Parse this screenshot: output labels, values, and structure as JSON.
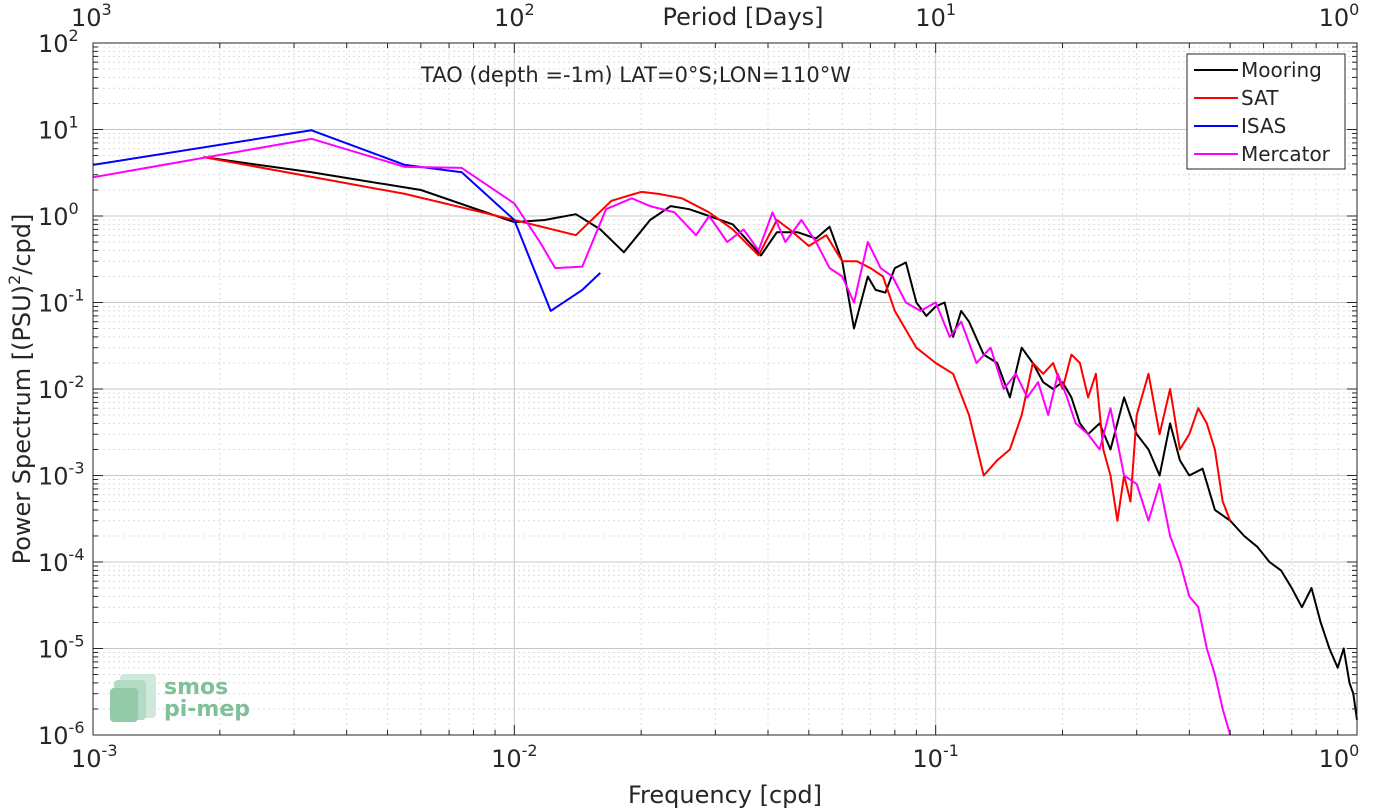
{
  "chart_data": {
    "type": "line",
    "title": "TAO (depth =-1m) LAT=0°S;LON=110°W",
    "xlabel": "Frequency [cpd]",
    "ylabel": "Power Spectrum [(PSU)^2/cpd]",
    "ylabel_main": "Power Spectrum [(PSU)",
    "ylabel_sup": "2",
    "ylabel_tail": "/cpd]",
    "x2label": "Period [Days]",
    "xscale": "log",
    "yscale": "log",
    "xlim": [
      0.001,
      1
    ],
    "ylim": [
      1e-06,
      100
    ],
    "grid": true,
    "legend_position": "top-right",
    "x_ticks": [
      {
        "base": "10",
        "exp": "-3",
        "value": 0.001
      },
      {
        "base": "10",
        "exp": "-2",
        "value": 0.01
      },
      {
        "base": "10",
        "exp": "-1",
        "value": 0.1
      },
      {
        "base": "10",
        "exp": "0",
        "value": 1
      }
    ],
    "x2_ticks": [
      {
        "base": "10",
        "exp": "3",
        "value": 0.001
      },
      {
        "base": "10",
        "exp": "2",
        "value": 0.01
      },
      {
        "base": "10",
        "exp": "1",
        "value": 0.1
      },
      {
        "base": "10",
        "exp": "0",
        "value": 1
      }
    ],
    "y_ticks": [
      {
        "base": "10",
        "exp": "-6",
        "value": 1e-06
      },
      {
        "base": "10",
        "exp": "-5",
        "value": 1e-05
      },
      {
        "base": "10",
        "exp": "-4",
        "value": 0.0001
      },
      {
        "base": "10",
        "exp": "-3",
        "value": 0.001
      },
      {
        "base": "10",
        "exp": "-2",
        "value": 0.01
      },
      {
        "base": "10",
        "exp": "-1",
        "value": 0.1
      },
      {
        "base": "10",
        "exp": "0",
        "value": 1
      },
      {
        "base": "10",
        "exp": "1",
        "value": 10
      },
      {
        "base": "10",
        "exp": "2",
        "value": 100
      }
    ],
    "series": [
      {
        "name": "Mooring",
        "color": "#000000",
        "x": [
          0.00183,
          0.0033,
          0.006,
          0.01,
          0.0118,
          0.014,
          0.016,
          0.0182,
          0.021,
          0.0235,
          0.026,
          0.029,
          0.033,
          0.0385,
          0.042,
          0.047,
          0.052,
          0.056,
          0.06,
          0.064,
          0.069,
          0.072,
          0.076,
          0.08,
          0.085,
          0.09,
          0.095,
          0.1,
          0.105,
          0.11,
          0.115,
          0.12,
          0.13,
          0.14,
          0.15,
          0.16,
          0.17,
          0.18,
          0.19,
          0.2,
          0.21,
          0.22,
          0.23,
          0.245,
          0.26,
          0.28,
          0.3,
          0.32,
          0.34,
          0.36,
          0.38,
          0.4,
          0.43,
          0.46,
          0.5,
          0.54,
          0.58,
          0.62,
          0.66,
          0.7,
          0.74,
          0.78,
          0.82,
          0.86,
          0.9,
          0.93,
          0.96,
          0.98,
          1.0
        ],
        "y": [
          4.8,
          3.2,
          2.0,
          0.85,
          0.9,
          1.05,
          0.7,
          0.38,
          0.9,
          1.3,
          1.2,
          1.0,
          0.8,
          0.35,
          0.65,
          0.65,
          0.55,
          0.75,
          0.3,
          0.05,
          0.2,
          0.14,
          0.13,
          0.25,
          0.29,
          0.1,
          0.07,
          0.09,
          0.1,
          0.04,
          0.08,
          0.06,
          0.025,
          0.02,
          0.008,
          0.03,
          0.02,
          0.012,
          0.01,
          0.012,
          0.008,
          0.004,
          0.003,
          0.004,
          0.002,
          0.008,
          0.003,
          0.002,
          0.001,
          0.004,
          0.0015,
          0.001,
          0.0012,
          0.0004,
          0.0003,
          0.0002,
          0.00015,
          0.0001,
          8e-05,
          5e-05,
          3e-05,
          5e-05,
          2e-05,
          1e-05,
          6e-06,
          1e-05,
          4e-06,
          3e-06,
          1.5e-06
        ]
      },
      {
        "name": "SAT",
        "color": "#ff0000",
        "x": [
          0.00183,
          0.0055,
          0.01,
          0.014,
          0.017,
          0.02,
          0.022,
          0.025,
          0.029,
          0.033,
          0.038,
          0.042,
          0.045,
          0.05,
          0.055,
          0.06,
          0.065,
          0.07,
          0.075,
          0.08,
          0.09,
          0.1,
          0.11,
          0.12,
          0.13,
          0.14,
          0.15,
          0.16,
          0.17,
          0.18,
          0.19,
          0.2,
          0.21,
          0.22,
          0.23,
          0.24,
          0.25,
          0.26,
          0.27,
          0.28,
          0.29,
          0.3,
          0.32,
          0.34,
          0.36,
          0.38,
          0.4,
          0.42,
          0.44,
          0.46,
          0.48,
          0.5
        ],
        "y": [
          4.8,
          1.8,
          0.9,
          0.6,
          1.5,
          1.9,
          1.8,
          1.6,
          1.1,
          0.7,
          0.35,
          0.9,
          0.7,
          0.45,
          0.6,
          0.3,
          0.3,
          0.25,
          0.2,
          0.08,
          0.03,
          0.02,
          0.015,
          0.005,
          0.001,
          0.0015,
          0.002,
          0.005,
          0.02,
          0.015,
          0.02,
          0.01,
          0.025,
          0.02,
          0.008,
          0.015,
          0.002,
          0.001,
          0.0003,
          0.001,
          0.0005,
          0.005,
          0.015,
          0.003,
          0.01,
          0.002,
          0.003,
          0.006,
          0.004,
          0.002,
          0.0005,
          0.0003
        ]
      },
      {
        "name": "ISAS",
        "color": "#0000ff",
        "x": [
          0.001,
          0.0033,
          0.0055,
          0.0075,
          0.01,
          0.0122,
          0.0145,
          0.016
        ],
        "y": [
          3.9,
          9.8,
          3.9,
          3.2,
          0.9,
          0.08,
          0.14,
          0.22
        ]
      },
      {
        "name": "Mercator",
        "color": "#ff00ff",
        "x": [
          0.001,
          0.0033,
          0.0055,
          0.0075,
          0.01,
          0.0115,
          0.0125,
          0.0145,
          0.0165,
          0.019,
          0.021,
          0.024,
          0.027,
          0.029,
          0.032,
          0.035,
          0.038,
          0.041,
          0.044,
          0.048,
          0.052,
          0.056,
          0.06,
          0.064,
          0.069,
          0.074,
          0.079,
          0.085,
          0.092,
          0.1,
          0.108,
          0.115,
          0.125,
          0.135,
          0.145,
          0.155,
          0.165,
          0.175,
          0.185,
          0.195,
          0.205,
          0.215,
          0.23,
          0.245,
          0.26,
          0.28,
          0.3,
          0.32,
          0.34,
          0.36,
          0.38,
          0.4,
          0.42,
          0.44,
          0.46,
          0.48,
          0.5
        ],
        "y": [
          2.8,
          7.8,
          3.7,
          3.6,
          1.4,
          0.5,
          0.25,
          0.26,
          1.2,
          1.6,
          1.3,
          1.1,
          0.6,
          1.0,
          0.5,
          0.7,
          0.4,
          1.1,
          0.5,
          0.9,
          0.5,
          0.25,
          0.2,
          0.1,
          0.5,
          0.25,
          0.2,
          0.1,
          0.08,
          0.1,
          0.04,
          0.06,
          0.02,
          0.03,
          0.01,
          0.015,
          0.008,
          0.012,
          0.005,
          0.015,
          0.008,
          0.004,
          0.003,
          0.002,
          0.006,
          0.001,
          0.0008,
          0.0003,
          0.0008,
          0.0002,
          0.0001,
          4e-05,
          3e-05,
          1e-05,
          5e-06,
          2e-06,
          1e-06
        ]
      }
    ]
  },
  "logo": {
    "line1": "smos",
    "line2": "pi-mep",
    "color": "#7fbf9a"
  }
}
